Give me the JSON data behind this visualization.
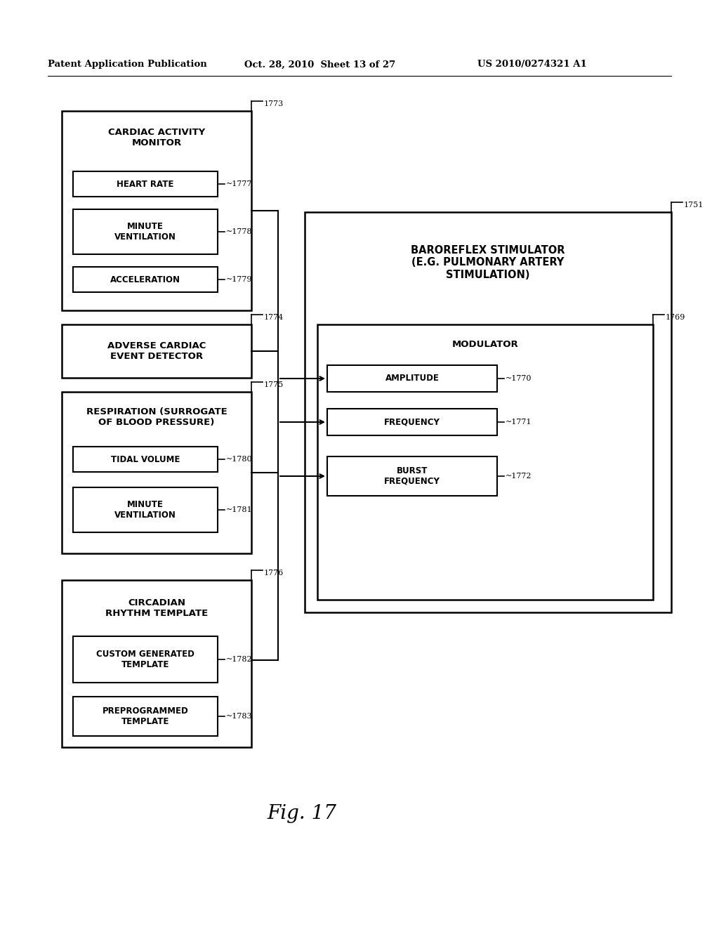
{
  "header_left": "Patent Application Publication",
  "header_mid": "Oct. 28, 2010  Sheet 13 of 27",
  "header_right": "US 2010/0274321 A1",
  "fig_label": "Fig. 17",
  "bg": "#ffffff",
  "lw_outer": 1.8,
  "lw_inner": 1.5,
  "font_main": 9.5,
  "font_sub": 8.5,
  "font_ref": 8.0
}
